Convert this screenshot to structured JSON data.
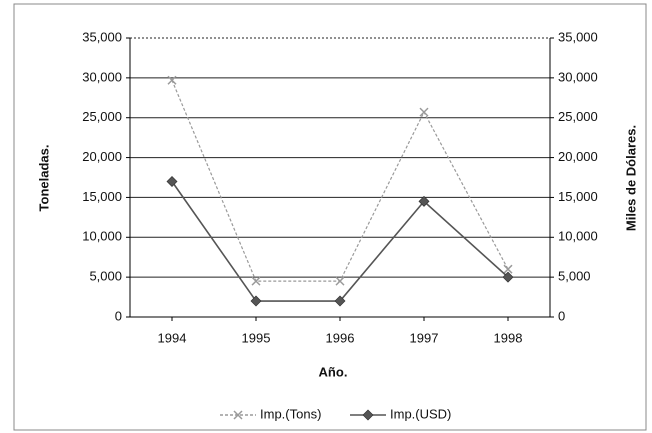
{
  "chart_data": {
    "type": "line",
    "categories": [
      "1994",
      "1995",
      "1996",
      "1997",
      "1998"
    ],
    "x_label": "Año.",
    "y_label": "Toneladas.",
    "y2_label": "Miles de Dólares.",
    "series": [
      {
        "name": "Imp.(Tons)",
        "color": "#9a9a9a",
        "values": [
          29700,
          4500,
          4500,
          25700,
          6000
        ]
      },
      {
        "name": "Imp.(USD)",
        "color": "#555555",
        "axis": "y2",
        "values": [
          17000,
          2000,
          2000,
          14500,
          5000
        ]
      }
    ],
    "ylim": [
      0,
      35000
    ],
    "yticks": [
      0,
      {
        "value": 5000,
        "label": "5,000"
      },
      {
        "value": 10000,
        "label": "10,000"
      },
      {
        "value": 15000,
        "label": "15,000"
      },
      {
        "value": 20000,
        "label": "20,000"
      },
      {
        "value": 25000,
        "label": "25,000"
      },
      {
        "value": 30000,
        "label": "30,000"
      },
      {
        "value": 35000,
        "label": "35,000"
      }
    ],
    "y2lim": [
      0,
      35000
    ],
    "y2ticks": [
      0,
      {
        "value": 5000,
        "label": "5,000"
      },
      {
        "value": 10000,
        "label": "10,000"
      },
      {
        "value": 15000,
        "label": "15,000"
      },
      {
        "value": 20000,
        "label": "20,000"
      },
      {
        "value": 25000,
        "label": "25,000"
      },
      {
        "value": 30000,
        "label": "30,000"
      },
      {
        "value": 35000,
        "label": "35,000"
      }
    ],
    "grid": true,
    "legend": "bottom"
  }
}
